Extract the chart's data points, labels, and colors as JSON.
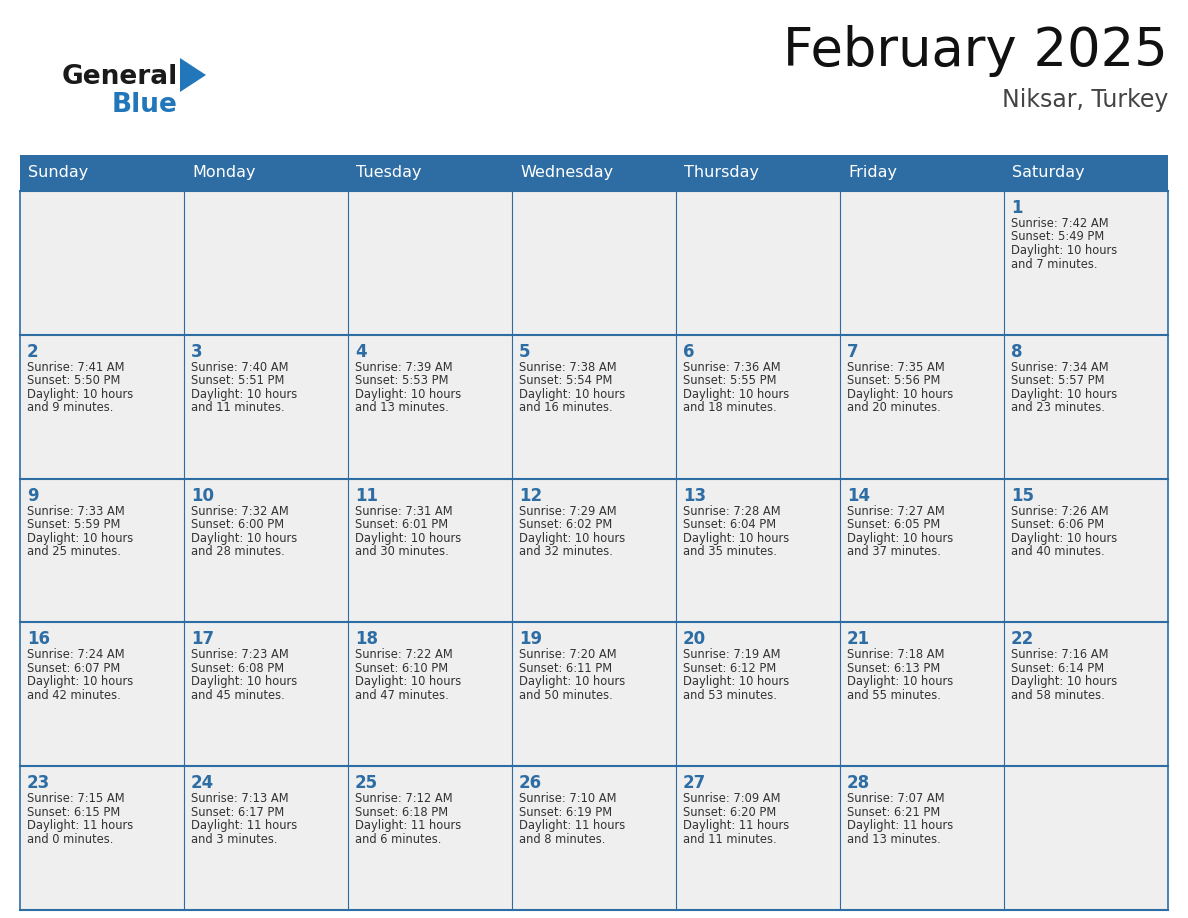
{
  "title": "February 2025",
  "subtitle": "Niksar, Turkey",
  "header_bg": "#2E6DA4",
  "header_text_color": "#FFFFFF",
  "cell_bg_light": "#EFEFEF",
  "day_number_color": "#2E6DA4",
  "info_text_color": "#333333",
  "border_color": "#2E6DA4",
  "days_of_week": [
    "Sunday",
    "Monday",
    "Tuesday",
    "Wednesday",
    "Thursday",
    "Friday",
    "Saturday"
  ],
  "calendar_data": [
    [
      null,
      null,
      null,
      null,
      null,
      null,
      {
        "day": 1,
        "sunrise": "7:42 AM",
        "sunset": "5:49 PM",
        "daylight_line1": "10 hours",
        "daylight_line2": "and 7 minutes."
      }
    ],
    [
      {
        "day": 2,
        "sunrise": "7:41 AM",
        "sunset": "5:50 PM",
        "daylight_line1": "10 hours",
        "daylight_line2": "and 9 minutes."
      },
      {
        "day": 3,
        "sunrise": "7:40 AM",
        "sunset": "5:51 PM",
        "daylight_line1": "10 hours",
        "daylight_line2": "and 11 minutes."
      },
      {
        "day": 4,
        "sunrise": "7:39 AM",
        "sunset": "5:53 PM",
        "daylight_line1": "10 hours",
        "daylight_line2": "and 13 minutes."
      },
      {
        "day": 5,
        "sunrise": "7:38 AM",
        "sunset": "5:54 PM",
        "daylight_line1": "10 hours",
        "daylight_line2": "and 16 minutes."
      },
      {
        "day": 6,
        "sunrise": "7:36 AM",
        "sunset": "5:55 PM",
        "daylight_line1": "10 hours",
        "daylight_line2": "and 18 minutes."
      },
      {
        "day": 7,
        "sunrise": "7:35 AM",
        "sunset": "5:56 PM",
        "daylight_line1": "10 hours",
        "daylight_line2": "and 20 minutes."
      },
      {
        "day": 8,
        "sunrise": "7:34 AM",
        "sunset": "5:57 PM",
        "daylight_line1": "10 hours",
        "daylight_line2": "and 23 minutes."
      }
    ],
    [
      {
        "day": 9,
        "sunrise": "7:33 AM",
        "sunset": "5:59 PM",
        "daylight_line1": "10 hours",
        "daylight_line2": "and 25 minutes."
      },
      {
        "day": 10,
        "sunrise": "7:32 AM",
        "sunset": "6:00 PM",
        "daylight_line1": "10 hours",
        "daylight_line2": "and 28 minutes."
      },
      {
        "day": 11,
        "sunrise": "7:31 AM",
        "sunset": "6:01 PM",
        "daylight_line1": "10 hours",
        "daylight_line2": "and 30 minutes."
      },
      {
        "day": 12,
        "sunrise": "7:29 AM",
        "sunset": "6:02 PM",
        "daylight_line1": "10 hours",
        "daylight_line2": "and 32 minutes."
      },
      {
        "day": 13,
        "sunrise": "7:28 AM",
        "sunset": "6:04 PM",
        "daylight_line1": "10 hours",
        "daylight_line2": "and 35 minutes."
      },
      {
        "day": 14,
        "sunrise": "7:27 AM",
        "sunset": "6:05 PM",
        "daylight_line1": "10 hours",
        "daylight_line2": "and 37 minutes."
      },
      {
        "day": 15,
        "sunrise": "7:26 AM",
        "sunset": "6:06 PM",
        "daylight_line1": "10 hours",
        "daylight_line2": "and 40 minutes."
      }
    ],
    [
      {
        "day": 16,
        "sunrise": "7:24 AM",
        "sunset": "6:07 PM",
        "daylight_line1": "10 hours",
        "daylight_line2": "and 42 minutes."
      },
      {
        "day": 17,
        "sunrise": "7:23 AM",
        "sunset": "6:08 PM",
        "daylight_line1": "10 hours",
        "daylight_line2": "and 45 minutes."
      },
      {
        "day": 18,
        "sunrise": "7:22 AM",
        "sunset": "6:10 PM",
        "daylight_line1": "10 hours",
        "daylight_line2": "and 47 minutes."
      },
      {
        "day": 19,
        "sunrise": "7:20 AM",
        "sunset": "6:11 PM",
        "daylight_line1": "10 hours",
        "daylight_line2": "and 50 minutes."
      },
      {
        "day": 20,
        "sunrise": "7:19 AM",
        "sunset": "6:12 PM",
        "daylight_line1": "10 hours",
        "daylight_line2": "and 53 minutes."
      },
      {
        "day": 21,
        "sunrise": "7:18 AM",
        "sunset": "6:13 PM",
        "daylight_line1": "10 hours",
        "daylight_line2": "and 55 minutes."
      },
      {
        "day": 22,
        "sunrise": "7:16 AM",
        "sunset": "6:14 PM",
        "daylight_line1": "10 hours",
        "daylight_line2": "and 58 minutes."
      }
    ],
    [
      {
        "day": 23,
        "sunrise": "7:15 AM",
        "sunset": "6:15 PM",
        "daylight_line1": "11 hours",
        "daylight_line2": "and 0 minutes."
      },
      {
        "day": 24,
        "sunrise": "7:13 AM",
        "sunset": "6:17 PM",
        "daylight_line1": "11 hours",
        "daylight_line2": "and 3 minutes."
      },
      {
        "day": 25,
        "sunrise": "7:12 AM",
        "sunset": "6:18 PM",
        "daylight_line1": "11 hours",
        "daylight_line2": "and 6 minutes."
      },
      {
        "day": 26,
        "sunrise": "7:10 AM",
        "sunset": "6:19 PM",
        "daylight_line1": "11 hours",
        "daylight_line2": "and 8 minutes."
      },
      {
        "day": 27,
        "sunrise": "7:09 AM",
        "sunset": "6:20 PM",
        "daylight_line1": "11 hours",
        "daylight_line2": "and 11 minutes."
      },
      {
        "day": 28,
        "sunrise": "7:07 AM",
        "sunset": "6:21 PM",
        "daylight_line1": "11 hours",
        "daylight_line2": "and 13 minutes."
      },
      null
    ]
  ],
  "logo_general_color": "#1A1A1A",
  "logo_blue_color": "#2277BB",
  "triangle_color": "#2277BB",
  "fig_width": 11.88,
  "fig_height": 9.18,
  "dpi": 100
}
